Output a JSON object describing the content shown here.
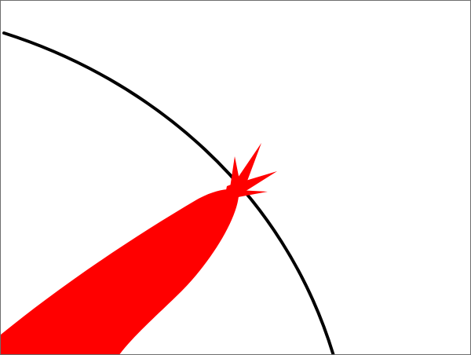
{
  "diagram": {
    "background_color": "#ffffff",
    "frame_color": "#6e6e6e",
    "boundary_line": {
      "shape": "arc",
      "color": "#000000"
    },
    "impact_shape": {
      "shape": "elongated-drop-with-star-burst",
      "color": "#ff0000"
    }
  }
}
